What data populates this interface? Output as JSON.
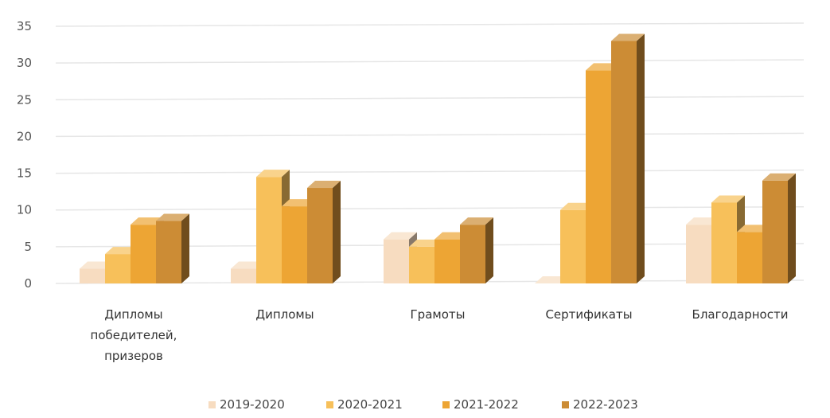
{
  "chart_data": {
    "type": "bar",
    "three_d": true,
    "categories": [
      [
        "Дипломы",
        "победителей,",
        "призеров"
      ],
      [
        "Дипломы"
      ],
      [
        "Грамоты"
      ],
      [
        "Сертификаты"
      ],
      [
        "Благодарности"
      ]
    ],
    "series": [
      {
        "name": "2019-2020",
        "color": "#f7dcc0",
        "values": [
          2,
          2,
          6,
          0,
          8
        ]
      },
      {
        "name": "2020-2021",
        "color": "#f7c05a",
        "values": [
          4,
          14.5,
          5,
          10,
          11
        ]
      },
      {
        "name": "2021-2022",
        "color": "#eda534",
        "values": [
          8,
          10.5,
          6,
          29,
          7
        ]
      },
      {
        "name": "2022-2023",
        "color": "#cc8c35",
        "values": [
          8.5,
          13,
          8,
          33,
          14
        ]
      }
    ],
    "ylim": [
      0,
      35
    ],
    "yticks": [
      0,
      5,
      10,
      15,
      20,
      25,
      30,
      35
    ],
    "grid": true,
    "legend": "bottom",
    "title": "",
    "xlabel": "",
    "ylabel": ""
  }
}
